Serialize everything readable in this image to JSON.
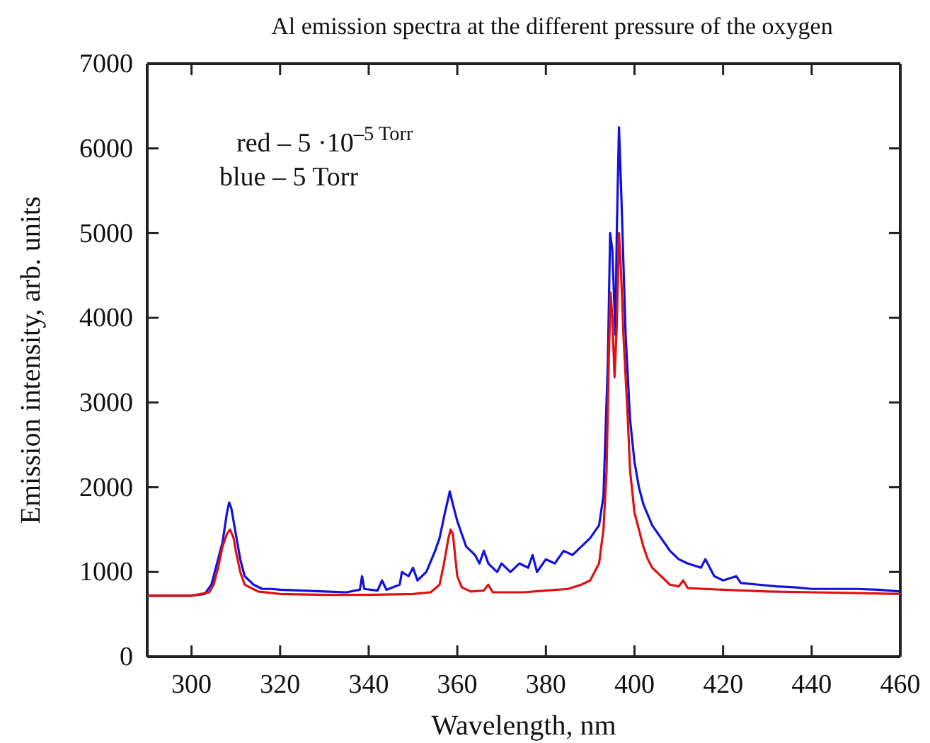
{
  "chart_data": {
    "type": "line",
    "title": "Al emission spectra at the different pressure of the oxygen",
    "xlabel": "Wavelength, nm",
    "ylabel": "Emission intensity, arb. units",
    "xlim": [
      290,
      460
    ],
    "xticks": [
      300,
      320,
      340,
      360,
      380,
      400,
      420,
      440,
      460
    ],
    "ylim": [
      0,
      7000
    ],
    "yticks": [
      0,
      1000,
      2000,
      3000,
      4000,
      5000,
      6000,
      7000
    ],
    "grid": false,
    "marker": "none",
    "line_style": "solid",
    "annotations": [
      "red – 5 ·10$^{–5 Torr}$",
      "blue – 5 Torr"
    ],
    "series": [
      {
        "color": "#1010e0",
        "x": [
          290,
          300,
          303,
          304.5,
          305,
          306,
          307,
          308,
          308.5,
          309,
          310,
          311,
          312,
          314,
          316,
          318,
          320,
          325,
          330,
          335,
          338,
          338.5,
          339,
          342,
          343,
          344,
          347,
          347.5,
          349,
          350,
          351,
          353,
          355,
          356,
          357,
          358.3,
          359,
          360,
          361,
          362,
          364,
          365,
          366,
          367,
          369,
          370,
          372,
          374,
          376,
          377,
          378,
          380,
          382,
          384,
          386,
          388,
          390,
          392,
          393,
          394,
          394.5,
          395,
          395.7,
          396,
          396.5,
          397,
          398,
          399,
          400,
          401,
          402,
          404,
          406,
          408,
          410,
          412,
          415,
          416,
          418,
          420,
          423,
          424,
          428,
          432,
          436,
          440,
          445,
          450,
          455,
          460
        ],
        "values": [
          720,
          720,
          740,
          850,
          950,
          1150,
          1350,
          1700,
          1820,
          1750,
          1450,
          1150,
          950,
          850,
          800,
          800,
          790,
          780,
          770,
          760,
          790,
          950,
          800,
          780,
          900,
          790,
          850,
          1000,
          950,
          1050,
          900,
          1000,
          1250,
          1400,
          1650,
          1950,
          1800,
          1600,
          1450,
          1300,
          1200,
          1100,
          1250,
          1100,
          1000,
          1100,
          1000,
          1100,
          1050,
          1200,
          1000,
          1150,
          1100,
          1250,
          1200,
          1300,
          1400,
          1550,
          1900,
          3500,
          5000,
          4800,
          3800,
          5000,
          6250,
          5500,
          3800,
          2800,
          2300,
          2000,
          1800,
          1550,
          1400,
          1250,
          1150,
          1100,
          1050,
          1150,
          950,
          900,
          950,
          870,
          850,
          830,
          820,
          800,
          800,
          800,
          790,
          770
        ]
      },
      {
        "color": "#e01010",
        "x": [
          290,
          300,
          304,
          305,
          306,
          307,
          308,
          308.7,
          309.5,
          310,
          311,
          312,
          315,
          320,
          330,
          340,
          350,
          354,
          356,
          357,
          358,
          358.5,
          359,
          359.5,
          360,
          361,
          363,
          366,
          367,
          368,
          375,
          380,
          385,
          388,
          390,
          392,
          393,
          393.7,
          394.2,
          394.6,
          395,
          395.5,
          396,
          396.5,
          397,
          397.5,
          398.5,
          399,
          400,
          401,
          402,
          403,
          404,
          406,
          408,
          410,
          411,
          412,
          420,
          430,
          440,
          450,
          460
        ],
        "values": [
          720,
          720,
          760,
          850,
          1050,
          1300,
          1450,
          1500,
          1400,
          1250,
          1000,
          850,
          770,
          740,
          730,
          730,
          740,
          760,
          850,
          1100,
          1400,
          1500,
          1450,
          1200,
          950,
          820,
          770,
          780,
          850,
          760,
          760,
          780,
          800,
          850,
          900,
          1100,
          1500,
          2200,
          3500,
          4300,
          4000,
          3300,
          3900,
          5000,
          4500,
          3800,
          2800,
          2200,
          1700,
          1500,
          1300,
          1150,
          1050,
          950,
          850,
          830,
          900,
          810,
          790,
          770,
          760,
          750,
          740
        ]
      }
    ]
  }
}
